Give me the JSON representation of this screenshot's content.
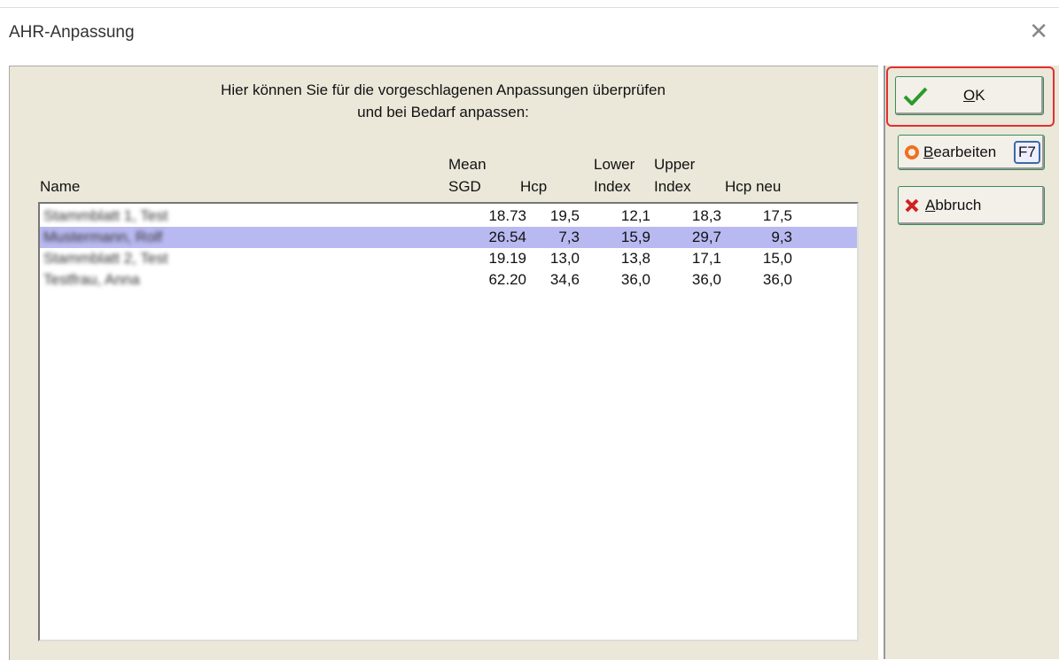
{
  "dialog": {
    "title": "AHR-Anpassung",
    "instruction": [
      "Hier können Sie für die vorgeschlagenen Anpassungen überprüfen",
      "und bei Bedarf anpassen:"
    ],
    "table": {
      "columns": [
        [
          "Name"
        ],
        [
          "Mean",
          "SGD"
        ],
        [
          "Hcp"
        ],
        [
          "Lower",
          "Index"
        ],
        [
          "Upper",
          "Index"
        ],
        [
          "Hcp neu"
        ]
      ],
      "rows": [
        [
          "Stammblatt 1, Test",
          "18.73",
          "19,5",
          "12,1",
          "18,3",
          "17,5"
        ],
        [
          "Mustermann, Rolf",
          "26.54",
          "7,3",
          "15,9",
          "29,7",
          "9,3"
        ],
        [
          "Stammblatt 2, Test",
          "19.19",
          "13,0",
          "13,8",
          "17,1",
          "15,0"
        ],
        [
          "Testfrau, Anna",
          "62.20",
          "34,6",
          "36,0",
          "36,0",
          "36,0"
        ]
      ],
      "selected_row": 1
    },
    "buttons": {
      "ok": "OK",
      "edit": "Bearbeiten",
      "edit_shortcut": "F7",
      "cancel": "Abbruch"
    }
  }
}
